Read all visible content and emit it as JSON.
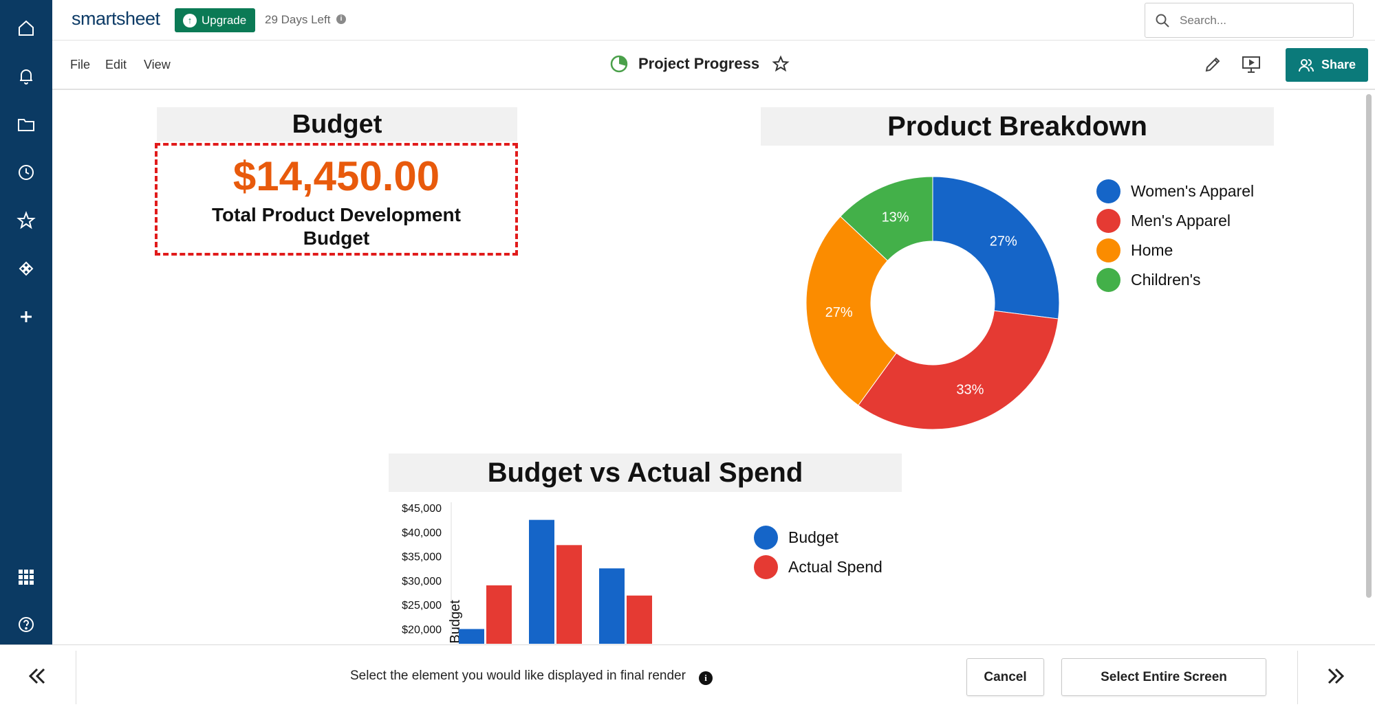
{
  "rail": {
    "icons": [
      "home-icon",
      "bell-icon",
      "folder-icon",
      "clock-icon",
      "star-icon",
      "solutions-icon",
      "plus-icon",
      "apps-grid-icon",
      "help-icon"
    ]
  },
  "topbar": {
    "logo": "smartsheet",
    "upgrade_label": "Upgrade",
    "trial_text": "29 Days Left",
    "search_placeholder": "Search..."
  },
  "menubar": {
    "menus": [
      "File",
      "Edit",
      "View"
    ],
    "title": "Project Progress",
    "share_label": "Share"
  },
  "widgets": {
    "budget": {
      "title": "Budget",
      "amount": "$14,450.00",
      "caption": "Total Product Development Budget"
    },
    "breakdown": {
      "title": "Product Breakdown"
    },
    "spend": {
      "title": "Budget vs Actual Spend"
    }
  },
  "chart_data": [
    {
      "type": "pie",
      "title": "Product Breakdown",
      "donut": true,
      "categories": [
        "Women's Apparel",
        "Men's Apparel",
        "Home",
        "Children's"
      ],
      "values": [
        27,
        33,
        27,
        13
      ],
      "labels": [
        "27%",
        "33%",
        "27%",
        "13%"
      ],
      "colors": [
        "#1565c8",
        "#e53a33",
        "#fb8c00",
        "#43b049"
      ],
      "legend": "right"
    },
    {
      "type": "bar",
      "title": "Budget vs Actual Spend",
      "ylabel": "Budget",
      "ylim": [
        15000,
        45000
      ],
      "yticks": [
        "$20,000",
        "$25,000",
        "$30,000",
        "$35,000",
        "$40,000",
        "$45,000"
      ],
      "ytick_values": [
        20000,
        25000,
        30000,
        35000,
        40000,
        45000
      ],
      "series": [
        {
          "name": "Budget",
          "color": "#1565c8",
          "values": [
            20000,
            42500,
            32500
          ]
        },
        {
          "name": "Actual Spend",
          "color": "#e53a33",
          "values": [
            29000,
            37300,
            26900
          ]
        }
      ],
      "legend": "right"
    }
  ],
  "bottombar": {
    "instruction": "Select the element you would like displayed in final render",
    "cancel_label": "Cancel",
    "select_all_label": "Select Entire Screen"
  }
}
